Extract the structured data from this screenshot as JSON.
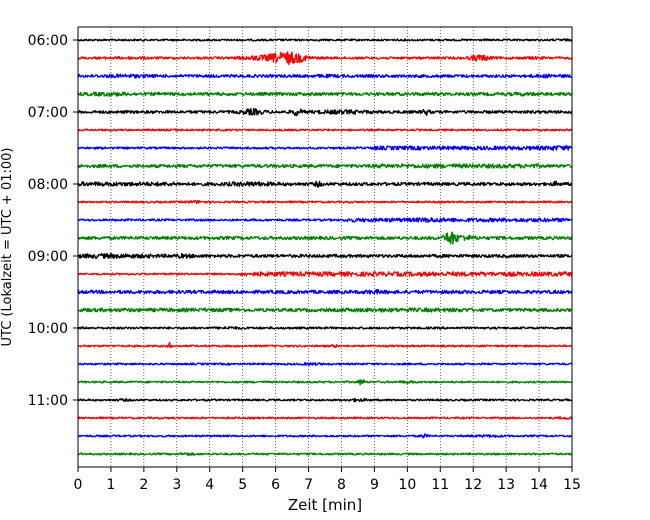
{
  "chart_data": {
    "type": "line",
    "title": "",
    "xlabel": "Zeit  [min]",
    "ylabel": "UTC (Lokalzeit = UTC + 01:00)",
    "xlim": [
      0,
      15
    ],
    "x_ticks": [
      "0",
      "1",
      "2",
      "3",
      "4",
      "5",
      "6",
      "7",
      "8",
      "9",
      "10",
      "11",
      "12",
      "13",
      "14",
      "15"
    ],
    "y_tick_labels": [
      "06:00",
      "07:00",
      "08:00",
      "09:00",
      "10:00",
      "11:00"
    ],
    "grid": "vertical-dotted",
    "trace_interval_minutes": 15,
    "traces": [
      {
        "start": "06:00",
        "color": "#000000",
        "base": 0.05,
        "events": [
          [
            14.7,
            0.2,
            0.15
          ]
        ]
      },
      {
        "start": "06:15",
        "color": "#ff0000",
        "base": 0.15,
        "events": [
          [
            6.4,
            0.5,
            2.0
          ],
          [
            5.6,
            0.6,
            0.6
          ],
          [
            12.2,
            0.3,
            0.9
          ],
          [
            1.6,
            0.5,
            0.15
          ],
          [
            13.8,
            0.3,
            0.15
          ]
        ]
      },
      {
        "start": "06:30",
        "color": "#0000ff",
        "base": 0.25,
        "events": [
          [
            1.5,
            0.6,
            0.25
          ],
          [
            7.5,
            0.4,
            0.15
          ],
          [
            14.3,
            0.4,
            0.2
          ]
        ]
      },
      {
        "start": "06:45",
        "color": "#008000",
        "base": 0.3,
        "events": [
          [
            1.0,
            0.6,
            0.25
          ],
          [
            13.5,
            0.3,
            0.2
          ]
        ]
      },
      {
        "start": "07:00",
        "color": "#000000",
        "base": 0.25,
        "events": [
          [
            5.3,
            0.3,
            0.8
          ],
          [
            6.65,
            0.15,
            1.0
          ],
          [
            8.0,
            0.8,
            0.35
          ],
          [
            10.55,
            0.1,
            0.9
          ]
        ]
      },
      {
        "start": "07:15",
        "color": "#ff0000",
        "base": 0.05,
        "events": [
          [
            3.0,
            0.3,
            0.1
          ]
        ]
      },
      {
        "start": "07:30",
        "color": "#0000ff",
        "base": 0.1,
        "events": [
          [
            12.0,
            3.0,
            0.35
          ],
          [
            14.6,
            0.4,
            0.25
          ]
        ]
      },
      {
        "start": "07:45",
        "color": "#008000",
        "base": 0.3,
        "events": [
          [
            11.5,
            2.5,
            0.2
          ]
        ]
      },
      {
        "start": "08:00",
        "color": "#000000",
        "base": 0.3,
        "events": [
          [
            5.2,
            0.8,
            0.35
          ],
          [
            1.5,
            1.5,
            0.2
          ],
          [
            7.3,
            0.1,
            0.7
          ],
          [
            14.5,
            0.1,
            0.5
          ]
        ]
      },
      {
        "start": "08:15",
        "color": "#ff0000",
        "base": 0.05,
        "events": [
          [
            3.6,
            0.3,
            0.3
          ]
        ]
      },
      {
        "start": "08:30",
        "color": "#0000ff",
        "base": 0.1,
        "events": [
          [
            11.5,
            3.3,
            0.35
          ],
          [
            10.7,
            0.3,
            0.3
          ]
        ]
      },
      {
        "start": "08:45",
        "color": "#008000",
        "base": 0.3,
        "events": [
          [
            11.3,
            0.15,
            2.0
          ],
          [
            11.6,
            0.4,
            0.7
          ]
        ]
      },
      {
        "start": "09:00",
        "color": "#000000",
        "base": 0.3,
        "events": [
          [
            1.0,
            1.3,
            0.35
          ],
          [
            3.2,
            0.3,
            0.3
          ]
        ]
      },
      {
        "start": "09:15",
        "color": "#ff0000",
        "base": 0.05,
        "events": [
          [
            10.0,
            5.0,
            0.5
          ]
        ]
      },
      {
        "start": "09:30",
        "color": "#0000ff",
        "base": 0.3,
        "events": [
          [
            7.5,
            7.5,
            0.05
          ],
          [
            9.0,
            0.3,
            0.3
          ]
        ]
      },
      {
        "start": "09:45",
        "color": "#008000",
        "base": 0.3,
        "events": [
          [
            10.0,
            2.0,
            0.15
          ],
          [
            2.5,
            2.5,
            0.1
          ]
        ]
      },
      {
        "start": "10:00",
        "color": "#000000",
        "base": 0.1,
        "events": [
          [
            4.6,
            0.3,
            0.2
          ]
        ]
      },
      {
        "start": "10:15",
        "color": "#ff0000",
        "base": 0.05,
        "events": [
          [
            2.8,
            0.05,
            1.2
          ],
          [
            7.8,
            0.1,
            0.3
          ]
        ]
      },
      {
        "start": "10:30",
        "color": "#0000ff",
        "base": 0.05,
        "events": [
          [
            7.1,
            0.3,
            0.25
          ]
        ]
      },
      {
        "start": "10:45",
        "color": "#008000",
        "base": 0.05,
        "events": [
          [
            8.6,
            0.1,
            0.9
          ],
          [
            10.0,
            0.2,
            0.3
          ]
        ]
      },
      {
        "start": "11:00",
        "color": "#000000",
        "base": 0.05,
        "events": [
          [
            8.5,
            0.3,
            0.3
          ],
          [
            1.4,
            0.2,
            0.2
          ]
        ]
      },
      {
        "start": "11:15",
        "color": "#ff0000",
        "base": 0.05,
        "events": [
          [
            14.8,
            0.2,
            0.2
          ]
        ]
      },
      {
        "start": "11:30",
        "color": "#0000ff",
        "base": 0.05,
        "events": [
          [
            10.5,
            0.1,
            0.6
          ],
          [
            12.5,
            0.5,
            0.2
          ]
        ]
      },
      {
        "start": "11:45",
        "color": "#008000",
        "base": 0.05,
        "events": [
          [
            3.3,
            0.2,
            0.3
          ]
        ]
      }
    ]
  }
}
